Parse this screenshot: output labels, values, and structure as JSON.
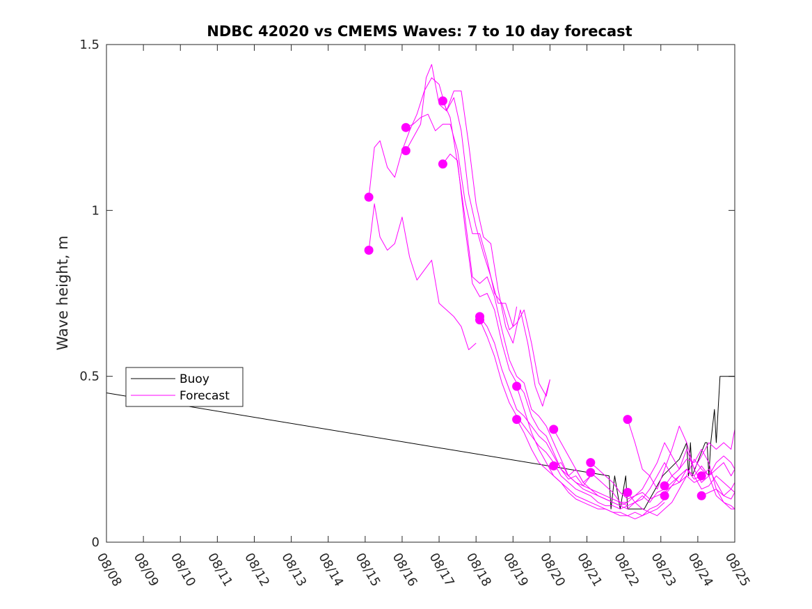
{
  "chart_data": {
    "type": "line",
    "title": "NDBC 42020 vs CMEMS Waves: 7 to 10 day forecast",
    "xlabel": "",
    "ylabel": "Wave height, m",
    "xlim": [
      0,
      17
    ],
    "ylim": [
      0,
      1.5
    ],
    "x_tick_labels": [
      "08/08",
      "08/09",
      "08/10",
      "08/11",
      "08/12",
      "08/13",
      "08/14",
      "08/15",
      "08/16",
      "08/17",
      "08/18",
      "08/19",
      "08/20",
      "08/21",
      "08/22",
      "08/23",
      "08/24",
      "08/25"
    ],
    "y_ticks": [
      0,
      0.5,
      1,
      1.5
    ],
    "y_tick_labels": [
      "0",
      "0.5",
      "1",
      "1.5"
    ],
    "legend": {
      "placement": "lower-left",
      "entries": [
        "Buoy",
        "Forecast"
      ]
    },
    "colors": {
      "buoy": "#000000",
      "forecast": "#ff00ff"
    },
    "series": [
      {
        "name": "Buoy",
        "color": "#000000",
        "x": [
          0,
          13.6,
          13.6,
          13.65,
          13.65,
          13.75,
          13.75,
          13.9,
          13.9,
          14.05,
          14.05,
          14.1,
          14.1,
          14.55,
          14.55,
          15.05,
          15.05,
          15.5,
          15.5,
          15.7,
          15.7,
          15.75,
          15.75,
          15.8,
          15.8,
          15.85,
          15.85,
          16.2,
          16.2,
          16.25,
          16.25,
          16.3,
          16.3,
          16.35,
          16.35,
          16.45,
          16.45,
          16.5,
          16.5,
          16.55,
          16.55,
          16.6,
          16.6,
          16.75,
          16.75,
          17
        ],
        "y": [
          0.45,
          0.2,
          0.2,
          0.1,
          0.1,
          0.2,
          0.2,
          0.1,
          0.1,
          0.2,
          0.2,
          0.1,
          0.1,
          0.1,
          0.1,
          0.2,
          0.2,
          0.25,
          0.25,
          0.3,
          0.3,
          0.2,
          0.2,
          0.3,
          0.3,
          0.2,
          0.2,
          0.3,
          0.3,
          0.3,
          0.3,
          0.2,
          0.2,
          0.3,
          0.3,
          0.4,
          0.4,
          0.3,
          0.3,
          0.4,
          0.4,
          0.5,
          0.5,
          0.5,
          0.5,
          0.5
        ]
      },
      {
        "name": "Forecast",
        "color": "#ff00ff",
        "x": [
          7.1,
          7.25,
          7.4,
          7.6,
          7.8,
          8.0,
          8.2,
          8.4,
          8.6,
          8.8,
          9.0,
          9.2,
          9.4,
          9.6,
          9.8,
          10.0
        ],
        "y": [
          0.88,
          1.02,
          0.92,
          0.88,
          0.9,
          0.98,
          0.86,
          0.79,
          0.82,
          0.85,
          0.72,
          0.7,
          0.68,
          0.65,
          0.58,
          0.6
        ]
      },
      {
        "name": "Forecast",
        "color": "#ff00ff",
        "x": [
          7.1,
          7.25,
          7.4,
          7.6,
          7.8,
          8.0,
          8.2,
          8.4,
          8.6,
          8.8,
          9.0,
          9.2,
          9.4,
          9.6,
          9.8,
          10.0,
          10.2,
          10.4,
          10.6,
          10.8,
          11.0,
          11.1
        ],
        "y": [
          1.04,
          1.19,
          1.21,
          1.13,
          1.1,
          1.18,
          1.24,
          1.29,
          1.36,
          1.4,
          1.38,
          1.3,
          1.34,
          1.24,
          1.05,
          0.95,
          0.87,
          0.8,
          0.72,
          0.72,
          0.65,
          0.71
        ]
      },
      {
        "name": "Forecast",
        "color": "#ff00ff",
        "x": [
          8.1,
          8.3,
          8.5,
          8.65,
          8.8,
          9.0,
          9.2,
          9.4,
          9.6,
          9.8,
          10.0,
          10.2,
          10.4,
          10.6,
          10.8,
          11.0,
          11.2,
          11.4,
          11.6,
          11.8,
          12.0
        ],
        "y": [
          1.18,
          1.22,
          1.26,
          1.4,
          1.44,
          1.32,
          1.3,
          1.36,
          1.36,
          1.2,
          1.02,
          0.92,
          0.9,
          0.76,
          0.65,
          0.6,
          0.7,
          0.6,
          0.47,
          0.41,
          0.49
        ]
      },
      {
        "name": "Forecast",
        "color": "#ff00ff",
        "x": [
          8.1,
          8.3,
          8.5,
          8.7,
          8.9,
          9.1,
          9.3,
          9.5,
          9.7,
          9.9,
          10.1,
          10.3,
          10.5,
          10.7,
          10.9,
          11.1,
          11.3,
          11.5,
          11.7,
          11.9,
          12.0
        ],
        "y": [
          1.25,
          1.26,
          1.28,
          1.29,
          1.24,
          1.26,
          1.26,
          1.18,
          1.03,
          0.93,
          0.93,
          0.85,
          0.75,
          0.72,
          0.64,
          0.66,
          0.7,
          0.6,
          0.48,
          0.44,
          0.49
        ]
      },
      {
        "name": "Forecast",
        "color": "#ff00ff",
        "x": [
          9.1,
          9.3,
          9.5,
          9.7,
          9.9,
          10.1,
          10.3,
          10.5,
          10.7,
          10.9,
          11.1,
          11.3,
          11.5,
          11.7,
          11.9,
          12.1,
          12.3,
          12.5,
          12.7,
          12.9,
          13.1
        ],
        "y": [
          1.33,
          1.28,
          1.14,
          0.98,
          0.8,
          0.78,
          0.8,
          0.74,
          0.64,
          0.55,
          0.5,
          0.48,
          0.4,
          0.38,
          0.35,
          0.3,
          0.25,
          0.2,
          0.22,
          0.18,
          0.2
        ]
      },
      {
        "name": "Forecast",
        "color": "#ff00ff",
        "x": [
          9.1,
          9.3,
          9.5,
          9.7,
          9.9,
          10.1,
          10.3,
          10.5,
          10.7,
          10.9,
          11.1,
          11.3,
          11.5,
          11.7,
          11.9,
          12.1,
          12.3,
          12.5,
          12.7,
          12.9,
          13.1
        ],
        "y": [
          1.14,
          1.17,
          1.15,
          0.95,
          0.78,
          0.74,
          0.75,
          0.7,
          0.6,
          0.52,
          0.48,
          0.45,
          0.38,
          0.34,
          0.32,
          0.27,
          0.22,
          0.19,
          0.2,
          0.17,
          0.2
        ]
      },
      {
        "name": "Forecast",
        "color": "#ff00ff",
        "x": [
          10.1,
          10.3,
          10.5,
          10.7,
          10.9,
          11.1,
          11.3,
          11.5,
          11.7,
          11.9,
          12.1,
          12.3,
          12.5,
          12.7,
          12.9,
          13.1,
          13.3,
          13.5,
          13.7,
          13.9,
          14.1
        ],
        "y": [
          0.68,
          0.65,
          0.6,
          0.52,
          0.46,
          0.4,
          0.38,
          0.35,
          0.32,
          0.3,
          0.26,
          0.22,
          0.2,
          0.18,
          0.16,
          0.15,
          0.14,
          0.13,
          0.12,
          0.11,
          0.12
        ]
      },
      {
        "name": "Forecast",
        "color": "#ff00ff",
        "x": [
          10.1,
          10.3,
          10.5,
          10.7,
          10.9,
          11.1,
          11.3,
          11.5,
          11.7,
          11.9,
          12.1,
          12.3,
          12.5,
          12.7,
          12.9,
          13.1,
          13.3,
          13.5,
          13.7,
          13.9,
          14.1
        ],
        "y": [
          0.67,
          0.62,
          0.56,
          0.48,
          0.42,
          0.38,
          0.35,
          0.32,
          0.29,
          0.27,
          0.24,
          0.2,
          0.18,
          0.16,
          0.15,
          0.14,
          0.12,
          0.11,
          0.11,
          0.1,
          0.11
        ]
      },
      {
        "name": "Forecast",
        "color": "#ff00ff",
        "x": [
          11.1,
          11.3,
          11.5,
          11.7,
          11.9,
          12.1,
          12.3,
          12.5,
          12.7,
          12.9,
          13.1,
          13.3,
          13.5,
          13.7,
          13.9,
          14.1,
          14.3,
          14.5,
          14.7,
          14.9,
          15.1
        ],
        "y": [
          0.47,
          0.4,
          0.33,
          0.28,
          0.24,
          0.2,
          0.18,
          0.16,
          0.14,
          0.13,
          0.12,
          0.11,
          0.1,
          0.09,
          0.09,
          0.08,
          0.09,
          0.08,
          0.1,
          0.11,
          0.13
        ]
      },
      {
        "name": "Forecast",
        "color": "#ff00ff",
        "x": [
          11.1,
          11.3,
          11.5,
          11.7,
          11.9,
          12.1,
          12.3,
          12.5,
          12.7,
          12.9,
          13.1,
          13.3,
          13.5,
          13.7,
          13.9,
          14.1,
          14.3,
          14.5,
          14.7,
          14.9,
          15.1
        ],
        "y": [
          0.37,
          0.33,
          0.28,
          0.24,
          0.22,
          0.2,
          0.18,
          0.15,
          0.13,
          0.12,
          0.11,
          0.1,
          0.1,
          0.09,
          0.08,
          0.08,
          0.07,
          0.08,
          0.09,
          0.1,
          0.12
        ]
      },
      {
        "name": "Forecast",
        "color": "#ff00ff",
        "x": [
          12.1,
          12.3,
          12.5,
          12.7,
          12.9,
          13.1,
          13.3,
          13.5,
          13.7,
          13.9,
          14.1,
          14.3,
          14.5,
          14.7,
          14.9,
          15.1,
          15.3,
          15.5,
          15.7,
          15.9,
          16.1
        ],
        "y": [
          0.34,
          0.3,
          0.26,
          0.22,
          0.18,
          0.16,
          0.14,
          0.13,
          0.12,
          0.11,
          0.1,
          0.12,
          0.14,
          0.12,
          0.15,
          0.16,
          0.18,
          0.2,
          0.22,
          0.19,
          0.2
        ]
      },
      {
        "name": "Forecast",
        "color": "#ff00ff",
        "x": [
          12.1,
          12.3,
          12.5,
          12.7,
          12.9,
          13.1,
          13.3,
          13.5,
          13.7,
          13.9,
          14.1,
          14.3,
          14.5,
          14.7,
          14.9,
          15.1,
          15.3,
          15.5,
          15.7,
          15.9,
          16.1
        ],
        "y": [
          0.23,
          0.24,
          0.2,
          0.18,
          0.17,
          0.16,
          0.15,
          0.14,
          0.13,
          0.12,
          0.12,
          0.14,
          0.15,
          0.13,
          0.14,
          0.15,
          0.17,
          0.18,
          0.2,
          0.18,
          0.19
        ]
      },
      {
        "name": "Forecast",
        "color": "#ff00ff",
        "x": [
          13.1,
          13.3,
          13.5,
          13.7,
          13.9,
          14.1,
          14.3,
          14.5,
          14.7,
          14.9,
          15.1,
          15.3,
          15.5,
          15.7,
          15.9,
          16.1,
          16.3,
          16.5,
          16.7,
          16.9,
          17.0
        ],
        "y": [
          0.24,
          0.22,
          0.2,
          0.18,
          0.15,
          0.13,
          0.14,
          0.16,
          0.2,
          0.24,
          0.3,
          0.26,
          0.22,
          0.28,
          0.22,
          0.18,
          0.2,
          0.22,
          0.24,
          0.2,
          0.22
        ]
      },
      {
        "name": "Forecast",
        "color": "#ff00ff",
        "x": [
          13.1,
          13.3,
          13.5,
          13.7,
          13.9,
          14.1,
          14.3,
          14.5,
          14.7,
          14.9,
          15.1,
          15.3,
          15.5,
          15.7,
          15.9,
          16.1,
          16.3,
          16.5,
          16.7,
          16.9,
          17.0
        ],
        "y": [
          0.21,
          0.19,
          0.17,
          0.15,
          0.12,
          0.11,
          0.12,
          0.13,
          0.16,
          0.2,
          0.24,
          0.2,
          0.18,
          0.22,
          0.2,
          0.16,
          0.17,
          0.2,
          0.18,
          0.16,
          0.18
        ]
      },
      {
        "name": "Forecast",
        "color": "#ff00ff",
        "x": [
          14.1,
          14.3,
          14.5,
          14.7,
          14.9,
          15.1,
          15.3,
          15.5,
          15.7,
          15.9,
          16.1,
          16.3,
          16.5,
          16.7,
          16.9,
          17.0
        ],
        "y": [
          0.37,
          0.3,
          0.22,
          0.2,
          0.16,
          0.22,
          0.28,
          0.35,
          0.3,
          0.22,
          0.26,
          0.3,
          0.28,
          0.3,
          0.28,
          0.34
        ]
      },
      {
        "name": "Forecast",
        "color": "#ff00ff",
        "x": [
          14.1,
          14.3,
          14.5,
          14.7,
          14.9,
          15.1,
          15.3,
          15.5,
          15.7,
          15.9,
          16.1,
          16.3,
          16.5,
          16.7,
          16.9,
          17.0
        ],
        "y": [
          0.15,
          0.12,
          0.1,
          0.09,
          0.08,
          0.1,
          0.12,
          0.16,
          0.2,
          0.25,
          0.22,
          0.2,
          0.24,
          0.26,
          0.24,
          0.22
        ]
      },
      {
        "name": "Forecast",
        "color": "#ff00ff",
        "x": [
          15.1,
          15.3,
          15.5,
          15.7,
          15.9,
          16.1,
          16.3,
          16.5,
          16.7,
          16.9,
          17.0
        ],
        "y": [
          0.17,
          0.2,
          0.22,
          0.25,
          0.24,
          0.28,
          0.24,
          0.16,
          0.14,
          0.16,
          0.15
        ]
      },
      {
        "name": "Forecast",
        "color": "#ff00ff",
        "x": [
          15.1,
          15.3,
          15.5,
          15.7,
          15.9,
          16.1,
          16.3,
          16.5,
          16.7,
          16.9,
          17.0
        ],
        "y": [
          0.14,
          0.17,
          0.2,
          0.22,
          0.2,
          0.23,
          0.2,
          0.14,
          0.12,
          0.11,
          0.1
        ]
      },
      {
        "name": "Forecast",
        "color": "#ff00ff",
        "x": [
          16.1,
          16.3,
          16.5,
          16.7,
          16.9,
          17.0
        ],
        "y": [
          0.2,
          0.22,
          0.18,
          0.14,
          0.13,
          0.15
        ]
      },
      {
        "name": "Forecast",
        "color": "#ff00ff",
        "x": [
          16.1,
          16.3,
          16.5,
          16.7,
          16.9,
          17.0
        ],
        "y": [
          0.14,
          0.15,
          0.16,
          0.12,
          0.1,
          0.1
        ]
      }
    ],
    "forecast_start_markers": {
      "x": [
        7.1,
        7.1,
        8.1,
        8.1,
        9.1,
        9.1,
        10.1,
        10.1,
        11.1,
        11.1,
        12.1,
        12.1,
        13.1,
        13.1,
        14.1,
        14.1,
        15.1,
        15.1,
        16.1,
        16.1
      ],
      "y": [
        0.88,
        1.04,
        1.18,
        1.25,
        1.33,
        1.14,
        0.68,
        0.67,
        0.47,
        0.37,
        0.34,
        0.23,
        0.24,
        0.21,
        0.37,
        0.15,
        0.17,
        0.14,
        0.2,
        0.14
      ]
    }
  }
}
